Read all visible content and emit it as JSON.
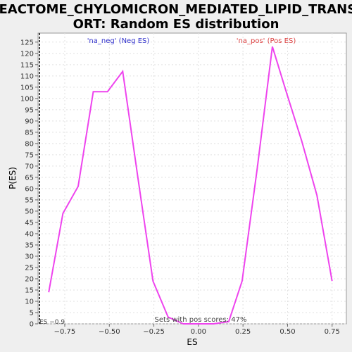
{
  "chart_data": {
    "type": "line",
    "title_line1": "REACTOME_CHYLOMICRON_MEDIATED_LIPID_TRANSP",
    "title_line2": "ORT: Random ES distribution",
    "xlabel": "ES",
    "ylabel": "P(ES)",
    "xlim": [
      -0.9,
      0.83
    ],
    "ylim": [
      0,
      129
    ],
    "x_ticks": [
      -0.75,
      -0.5,
      -0.25,
      0.0,
      0.25,
      0.5,
      0.75
    ],
    "x_tick_labels": [
      "−0.75",
      "−0.50",
      "−0.25",
      "0.00",
      "0.25",
      "0.50",
      "0.75"
    ],
    "y_ticks": [
      0,
      5,
      10,
      15,
      20,
      25,
      30,
      35,
      40,
      45,
      50,
      55,
      60,
      65,
      70,
      75,
      80,
      85,
      90,
      95,
      100,
      105,
      110,
      115,
      120,
      125
    ],
    "grid": true,
    "line_color": "#ee44ee",
    "series": [
      {
        "x": [
          -0.84,
          -0.76,
          -0.675,
          -0.59,
          -0.51,
          -0.425,
          -0.34,
          -0.255,
          -0.17,
          -0.085,
          0.0,
          0.085,
          0.17,
          0.245,
          0.33,
          0.415,
          0.5,
          0.58,
          0.665,
          0.75
        ],
        "y": [
          14,
          49,
          61,
          103,
          103,
          112,
          65,
          19,
          3,
          0,
          0,
          0,
          1,
          19,
          69,
          123,
          101,
          81,
          57,
          19
        ]
      }
    ],
    "legend_neg": {
      "text": "'na_neg' (Neg ES)",
      "color": "#3333cc"
    },
    "legend_pos": {
      "text": "'na_pos' (Pos ES)",
      "color": "#dd4444"
    },
    "es_marker": {
      "x": -0.9,
      "label": "ES −0.9"
    },
    "annotation": "Sets with pos scores: 47%"
  }
}
